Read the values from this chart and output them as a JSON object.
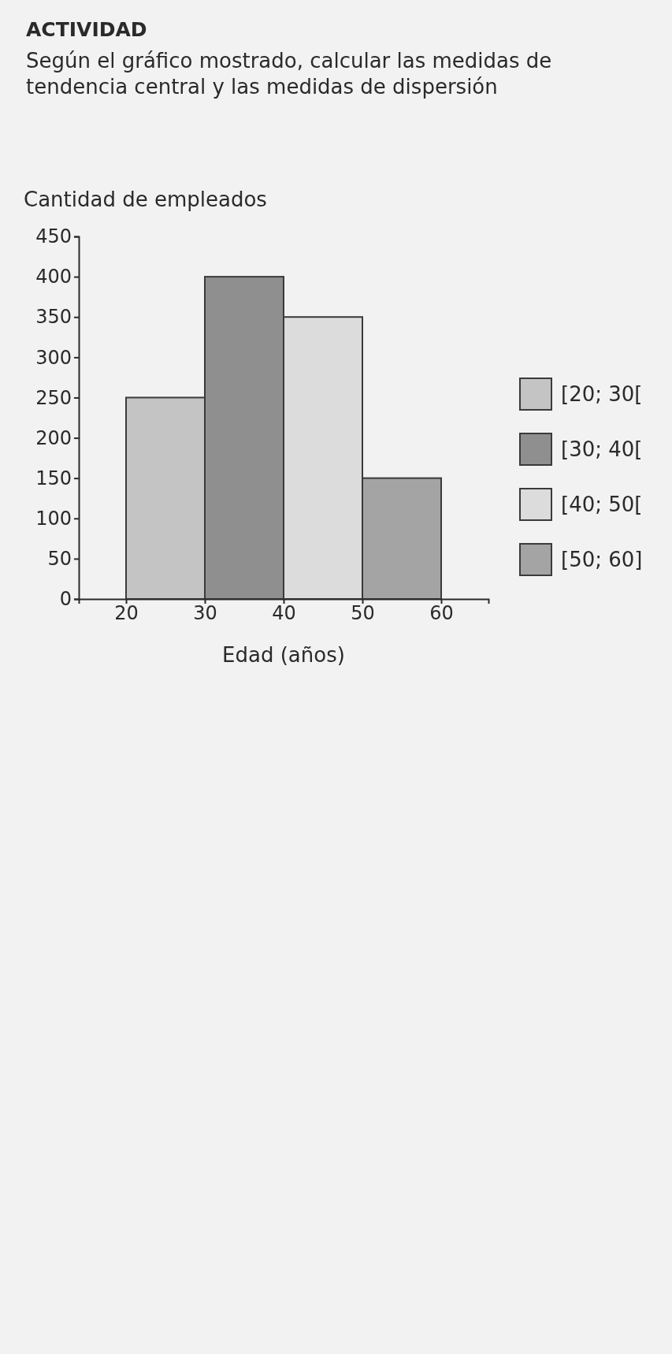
{
  "chart_data": {
    "type": "histogram",
    "title": "ACTIVIDAD",
    "subtitle": "Según el gráfico mostrado, calcular las medidas de tendencia central y las medidas de dispersión",
    "xlabel": "Edad (años)",
    "ylabel": "Cantidad de empleados",
    "bins": [
      20,
      30,
      40,
      50,
      60
    ],
    "series": [
      {
        "name": "[20; 30[",
        "color": "#c4c4c4",
        "values": [
          250,
          null,
          null,
          null
        ]
      },
      {
        "name": "[30; 40[",
        "color": "#8f8f8f",
        "values": [
          null,
          400,
          null,
          null
        ]
      },
      {
        "name": "[40; 50[",
        "color": "#dcdcdc",
        "values": [
          null,
          null,
          350,
          null
        ]
      },
      {
        "name": "[50; 60]",
        "color": "#a4a4a4",
        "values": [
          null,
          null,
          null,
          150
        ]
      }
    ],
    "xlim": [
      14,
      66
    ],
    "xticks": [
      20,
      30,
      40,
      50,
      60
    ],
    "ylim": [
      0,
      450
    ],
    "yticks": [
      0,
      50,
      100,
      150,
      200,
      250,
      300,
      350,
      400,
      450
    ],
    "legend": "right"
  }
}
